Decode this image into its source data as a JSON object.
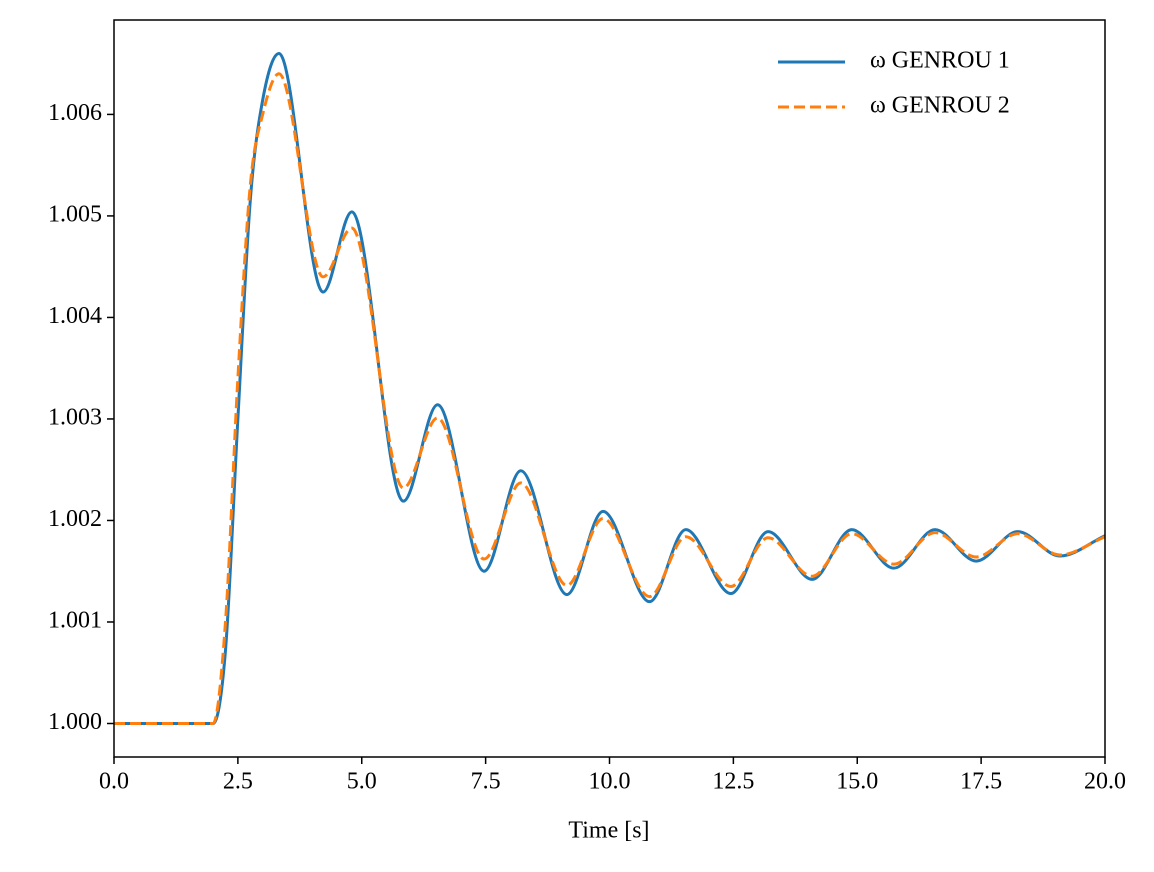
{
  "chart_data": {
    "type": "line",
    "x_label": "Time [s]",
    "x": [
      0,
      2.0,
      2.25,
      2.5,
      2.75,
      3.0,
      3.33,
      4.22,
      4.8,
      5.84,
      6.53,
      7.47,
      8.21,
      9.14,
      9.87,
      10.81,
      11.54,
      12.45,
      13.2,
      14.09,
      14.89,
      15.74,
      16.57,
      17.4,
      18.24,
      19.09,
      20
    ],
    "series": [
      {
        "name": "ω GENROU 1",
        "color": "#1f77b4",
        "linestyle": "solid",
        "values": [
          1.0,
          1.0,
          1.00072,
          1.003,
          1.00515,
          1.00614,
          1.0066,
          1.00425,
          1.00504,
          1.00219,
          1.00314,
          1.0015,
          1.00249,
          1.00127,
          1.00209,
          1.0012,
          1.00191,
          1.00128,
          1.00189,
          1.00142,
          1.00191,
          1.00153,
          1.00191,
          1.0016,
          1.00189,
          1.00165,
          1.00185
        ]
      },
      {
        "name": "ω GENROU 2",
        "color": "#ff7f0e",
        "linestyle": "dashed",
        "values": [
          1.0,
          1.0,
          1.001,
          1.0034,
          1.0053,
          1.006,
          1.0064,
          1.0044,
          1.00488,
          1.00232,
          1.00301,
          1.00162,
          1.00237,
          1.00136,
          1.00202,
          1.00125,
          1.00184,
          1.00135,
          1.00183,
          1.00145,
          1.00187,
          1.00157,
          1.00188,
          1.00164,
          1.00187,
          1.00166,
          1.00184
        ]
      }
    ],
    "xlim": [
      0,
      20
    ],
    "xticks": [
      {
        "value": 0,
        "label": "0.0"
      },
      2.5,
      {
        "value": 5,
        "label": "5.0"
      },
      7.5,
      {
        "value": 10,
        "label": "10.0"
      },
      12.5,
      {
        "value": 15,
        "label": "15.0"
      },
      17.5,
      {
        "value": 20,
        "label": "20.0"
      }
    ],
    "ylim": [
      0.99967,
      1.00693
    ],
    "yticks": [
      {
        "value": 1,
        "label": "1.000"
      },
      1.001,
      1.002,
      1.003,
      1.004,
      1.005,
      1.006
    ],
    "grid": false,
    "legend": "upper right"
  }
}
